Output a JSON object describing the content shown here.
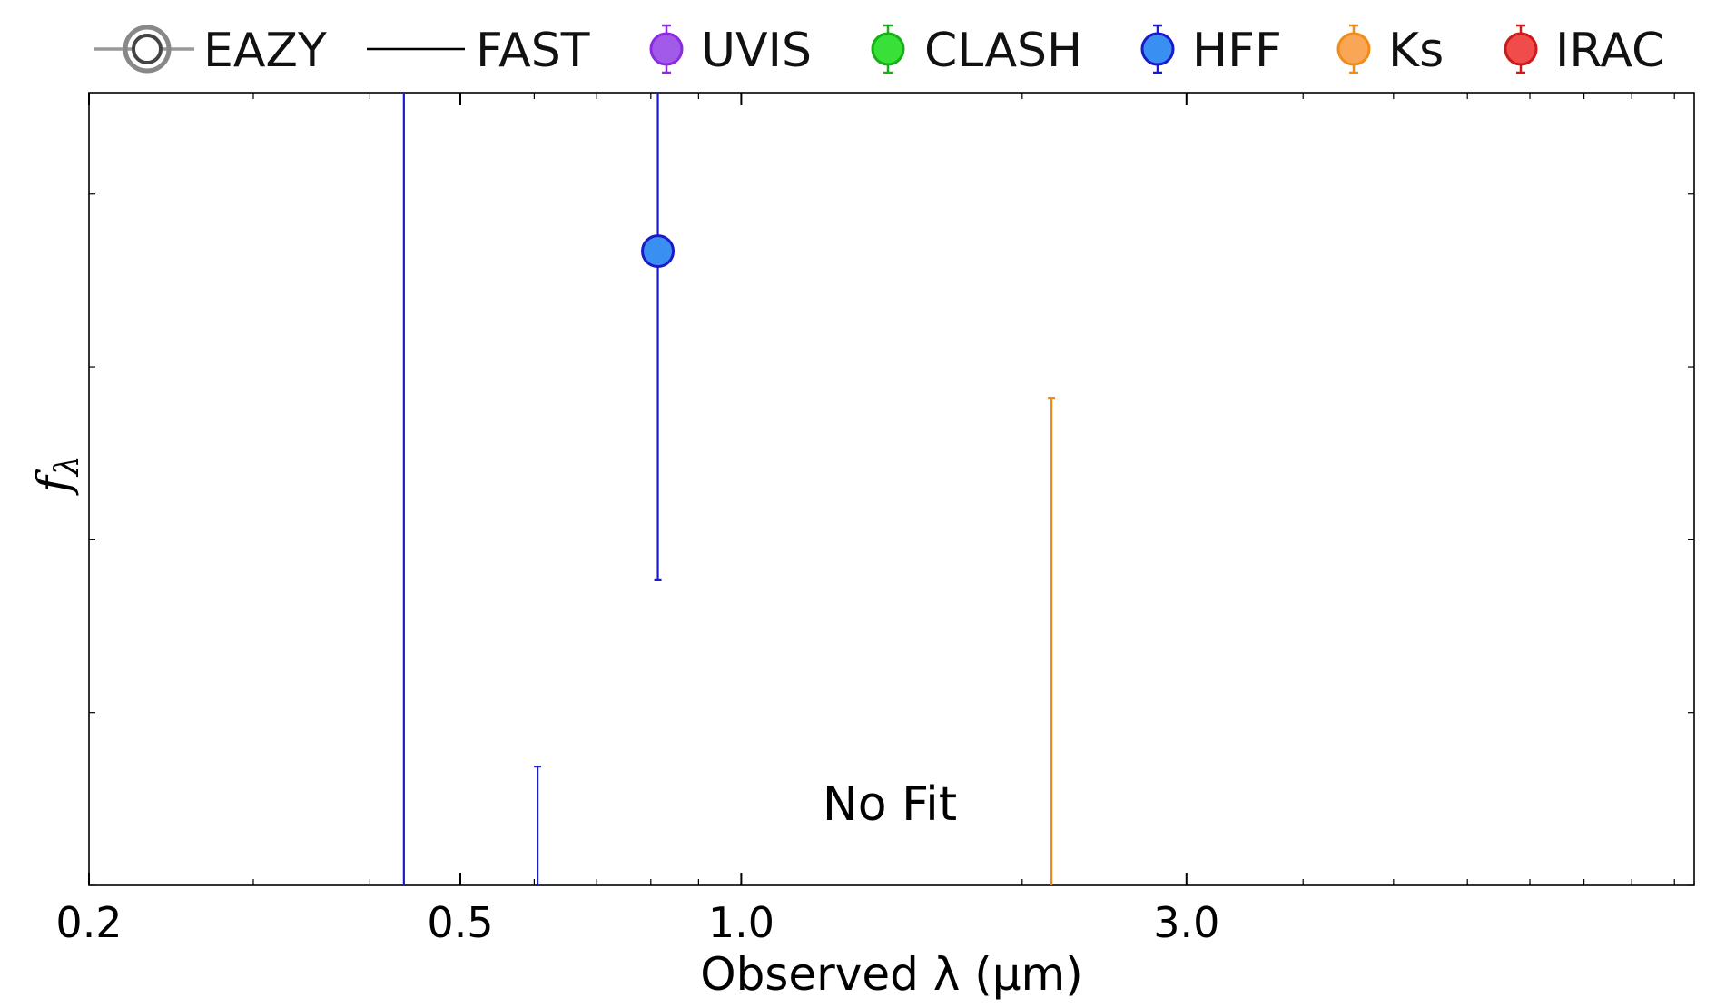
{
  "chart_data": {
    "type": "scatter",
    "xlabel": "Observed λ (μm)",
    "ylabel": "f",
    "ylabel_subscript": "λ",
    "xscale": "log",
    "xlim": [
      0.2,
      10.5
    ],
    "ylim": [
      0,
      1
    ],
    "xticks": [
      {
        "value": 0.2,
        "label": "0.2"
      },
      {
        "value": 0.5,
        "label": "0.5"
      },
      {
        "value": 1.0,
        "label": "1.0"
      },
      {
        "value": 3.0,
        "label": "3.0"
      }
    ],
    "x_minor_ticks": [
      0.3,
      0.4,
      0.6,
      0.7,
      0.8,
      0.9,
      2.0,
      4.0,
      5.0,
      6.0,
      7.0,
      8.0,
      9.0,
      10.0
    ],
    "y_ticks": [
      0.0,
      0.218,
      0.436,
      0.654,
      0.872
    ],
    "y_tick_labels_shown": false,
    "grid": false,
    "legend_placement": "top, outside plot",
    "annotation": "No Fit",
    "legend": [
      {
        "label": "EAZY",
        "marker": "ring",
        "color": "#777777",
        "fill": "#ffffff"
      },
      {
        "label": "FAST",
        "marker": "line",
        "color": "#000000"
      },
      {
        "label": "UVIS",
        "marker": "circle-errorbar",
        "color": "#8a2be2",
        "fill": "#a25ae8"
      },
      {
        "label": "CLASH",
        "marker": "circle-errorbar",
        "color": "#16b016",
        "fill": "#38e038"
      },
      {
        "label": "HFF",
        "marker": "circle-errorbar",
        "color": "#1a1ac8",
        "fill": "#3a8ff2"
      },
      {
        "label": "Ks",
        "marker": "circle-errorbar",
        "color": "#f08c1c",
        "fill": "#f9a656"
      },
      {
        "label": "IRAC",
        "marker": "circle-errorbar",
        "color": "#cc1a1a",
        "fill": "#f04c4c"
      }
    ],
    "series": [
      {
        "name": "HFF",
        "color": "#1a1ac8",
        "fill": "#3a8ff2",
        "points": [
          {
            "x": 0.435,
            "y": null,
            "yerr_low": 0.0,
            "yerr_high": 1.0
          },
          {
            "x": 0.605,
            "y": null,
            "yerr_low": 0.0,
            "yerr_high": 0.15
          },
          {
            "x": 0.814,
            "y": 0.8,
            "yerr_low": 0.385,
            "yerr_high": 1.0
          }
        ]
      },
      {
        "name": "Ks",
        "color": "#f08c1c",
        "fill": "#f9a656",
        "points": [
          {
            "x": 2.15,
            "y": null,
            "yerr_low": 0.0,
            "yerr_high": 0.615
          }
        ]
      }
    ]
  }
}
